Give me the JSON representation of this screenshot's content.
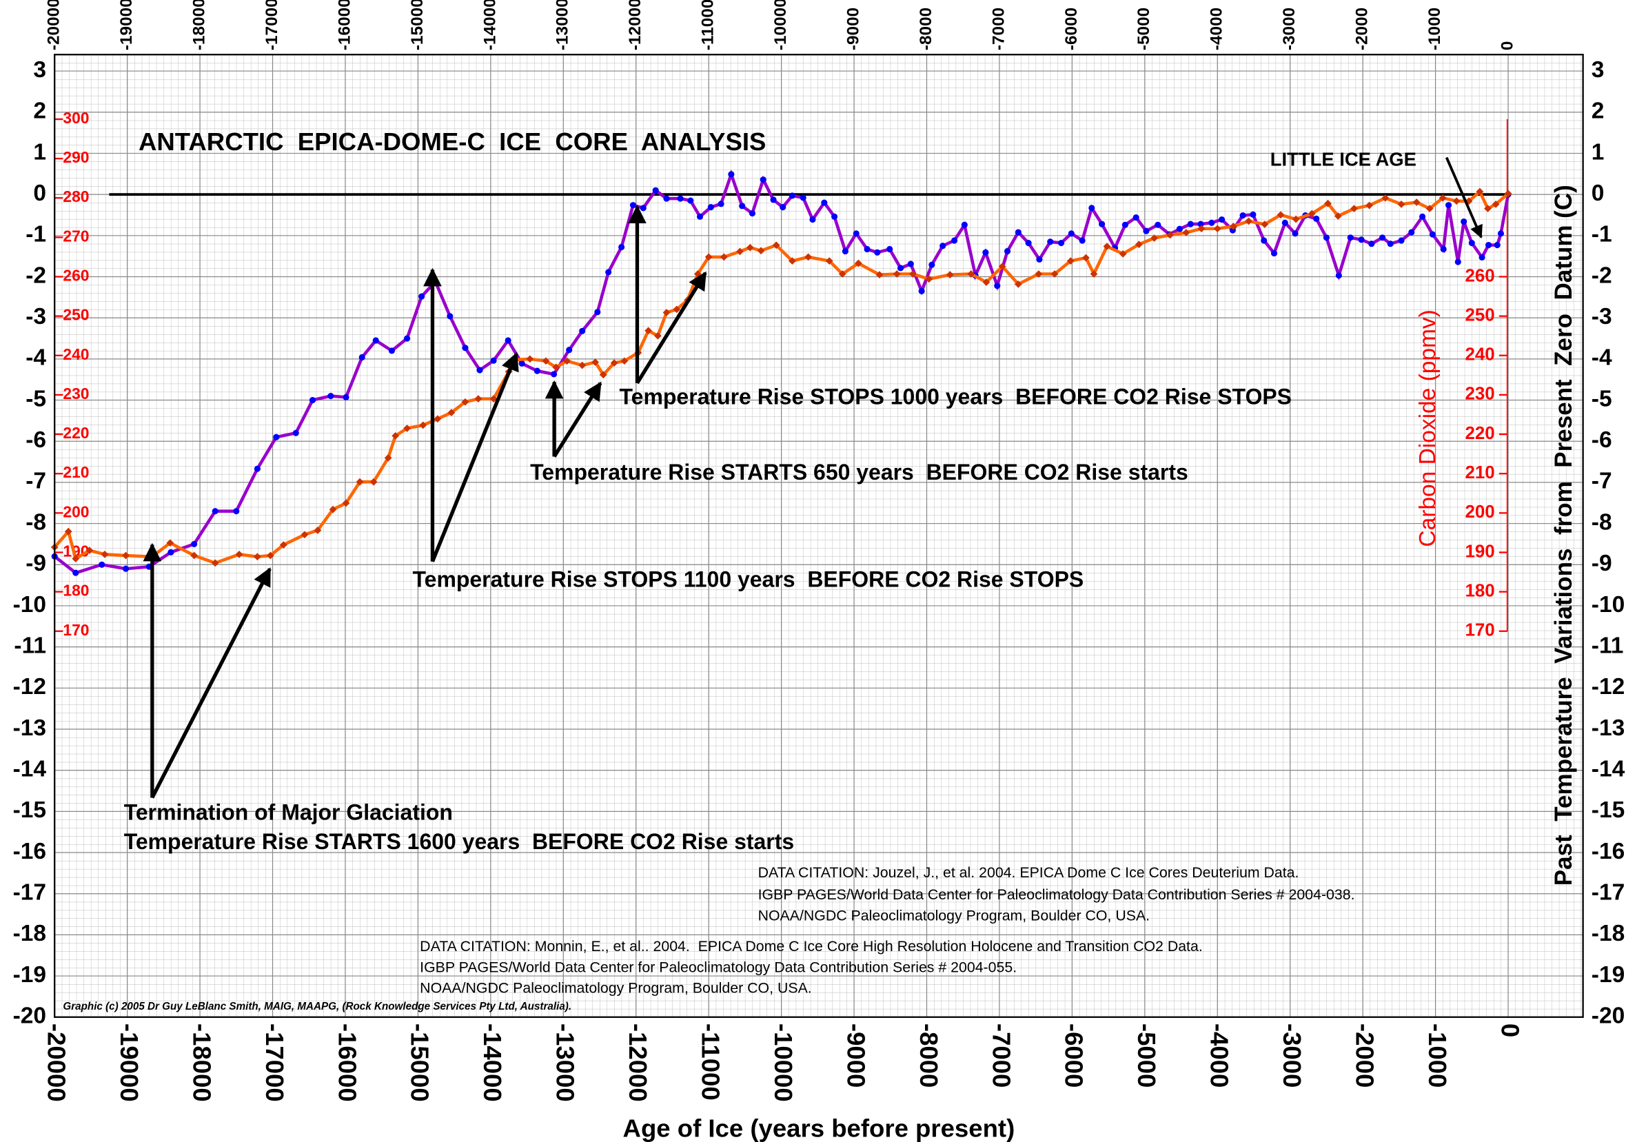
{
  "chart_data": {
    "type": "line",
    "title": "ANTARCTIC  EPICA-DOME-C  ICE  CORE  ANALYSIS",
    "x_label": "Age of Ice (years before present)",
    "y_label": "Past  Temperature  Variations  from  Present  Zero  Datum (C)",
    "y2_label": "Carbon Dioxide (ppmv)",
    "annotations": [
      "LITTLE ICE AGE",
      "Temperature Rise STOPS 1000 years  BEFORE CO2 Rise STOPS",
      "Temperature Rise STARTS 650 years  BEFORE CO2 Rise starts",
      "Temperature Rise STOPS 1100 years  BEFORE CO2 Rise STOPS",
      "Termination of Major Glaciation",
      "Temperature Rise STARTS 1600 years  BEFORE CO2 Rise starts"
    ],
    "citations": [
      "DATA CITATION: Jouzel, J., et al. 2004. EPICA Dome C Ice Cores Deuterium Data.",
      "IGBP PAGES/World Data Center for Paleoclimatology Data Contribution Series # 2004-038.",
      "NOAA/NGDC Paleoclimatology Program, Boulder CO, USA.",
      "DATA CITATION: Monnin, E., et al.. 2004.  EPICA Dome C Ice Core High Resolution Holocene and Transition CO2 Data.",
      "IGBP PAGES/World Data Center for Paleoclimatology Data Contribution Series # 2004-055.",
      "NOAA/NGDC Paleoclimatology Program, Boulder CO, USA."
    ],
    "credit": "Graphic (c) 2005 Dr Guy LeBlanc Smith, MAIG, MAAPG, (Rock Knowledge Services Pty Ltd, Australia).",
    "xlim": [
      -20000,
      1030
    ],
    "xticks": [
      -20000,
      -19000,
      -18000,
      -17000,
      -16000,
      -15000,
      -14000,
      -13000,
      -12000,
      -11000,
      -10000,
      -9000,
      -8000,
      -7000,
      -6000,
      -5000,
      -4000,
      -3000,
      -2000,
      -1000,
      0
    ],
    "ylim": [
      -20,
      3.4
    ],
    "yticks": [
      -20,
      -19,
      -18,
      -17,
      -16,
      -15,
      -14,
      -13,
      -12,
      -11,
      -10,
      -9,
      -8,
      -7,
      -6,
      -5,
      -4,
      -3,
      -2,
      -1,
      0,
      1,
      2,
      3
    ],
    "y2lim": [
      72,
      316.4
    ],
    "y2ticks": [
      170,
      180,
      190,
      200,
      210,
      220,
      230,
      240,
      250,
      260,
      270,
      280,
      290,
      300
    ],
    "y2ticks_inner": [
      170,
      180,
      190,
      200,
      210,
      220,
      230,
      240,
      250,
      260
    ],
    "reference_line": 0,
    "grid": true,
    "series": [
      {
        "color": "#9900cc",
        "marker_color": "#0000ff",
        "axis": "y",
        "x": [
          -20000,
          -19710,
          -19350,
          -19020,
          -18700,
          -18400,
          -18080,
          -17790,
          -17500,
          -17210,
          -16950,
          -16680,
          -16450,
          -16200,
          -15990,
          -15770,
          -15580,
          -15360,
          -15150,
          -14950,
          -14760,
          -14560,
          -14350,
          -14150,
          -13960,
          -13760,
          -13570,
          -13360,
          -13130,
          -12920,
          -12740,
          -12530,
          -12380,
          -12200,
          -12040,
          -11900,
          -11730,
          -11580,
          -11390,
          -11250,
          -11120,
          -10970,
          -10830,
          -10690,
          -10540,
          -10400,
          -10250,
          -10110,
          -9980,
          -9850,
          -9700,
          -9570,
          -9410,
          -9270,
          -9120,
          -8970,
          -8820,
          -8680,
          -8510,
          -8360,
          -8220,
          -8070,
          -7930,
          -7780,
          -7620,
          -7480,
          -7330,
          -7190,
          -7030,
          -6890,
          -6740,
          -6600,
          -6450,
          -6300,
          -6150,
          -6010,
          -5860,
          -5730,
          -5590,
          -5410,
          -5270,
          -5120,
          -4980,
          -4820,
          -4660,
          -4520,
          -4370,
          -4230,
          -4080,
          -3940,
          -3790,
          -3650,
          -3510,
          -3360,
          -3220,
          -3070,
          -2930,
          -2790,
          -2640,
          -2500,
          -2330,
          -2170,
          -2020,
          -1880,
          -1730,
          -1620,
          -1470,
          -1330,
          -1180,
          -1040,
          -890,
          -820,
          -690,
          -610,
          -500,
          -360,
          -270,
          -150,
          -100,
          0
        ],
        "values": [
          -8.8,
          -9.2,
          -9.0,
          -9.1,
          -9.05,
          -8.7,
          -8.5,
          -7.7,
          -7.7,
          -6.67,
          -5.9,
          -5.8,
          -5.0,
          -4.9,
          -4.93,
          -3.96,
          -3.55,
          -3.8,
          -3.5,
          -2.48,
          -2.12,
          -2.96,
          -3.73,
          -4.27,
          -4.04,
          -3.55,
          -4.11,
          -4.29,
          -4.37,
          -3.78,
          -3.32,
          -2.86,
          -1.89,
          -1.28,
          -0.26,
          -0.33,
          0.1,
          -0.1,
          -0.1,
          -0.15,
          -0.54,
          -0.31,
          -0.23,
          0.49,
          -0.28,
          -0.46,
          0.36,
          -0.13,
          -0.31,
          -0.03,
          -0.08,
          -0.61,
          -0.2,
          -0.54,
          -1.38,
          -0.95,
          -1.33,
          -1.41,
          -1.33,
          -1.79,
          -1.69,
          -2.35,
          -1.71,
          -1.25,
          -1.12,
          -0.74,
          -1.97,
          -1.41,
          -2.22,
          -1.38,
          -0.92,
          -1.18,
          -1.58,
          -1.15,
          -1.18,
          -0.95,
          -1.12,
          -0.33,
          -0.72,
          -1.3,
          -0.74,
          -0.56,
          -0.89,
          -0.74,
          -0.97,
          -0.84,
          -0.72,
          -0.72,
          -0.69,
          -0.61,
          -0.87,
          -0.51,
          -0.49,
          -1.12,
          -1.43,
          -0.69,
          -0.95,
          -0.51,
          -0.59,
          -1.05,
          -1.97,
          -1.05,
          -1.1,
          -1.2,
          -1.05,
          -1.2,
          -1.12,
          -0.92,
          -0.54,
          -0.97,
          -1.33,
          -0.26,
          -1.64,
          -0.66,
          -1.18,
          -1.53,
          -1.23,
          -1.23,
          -0.95,
          0
        ]
      },
      {
        "color": "#ff6600",
        "marker_color": "#cc3300",
        "axis": "y2",
        "x": [
          -20000,
          -19810,
          -19710,
          -19520,
          -19310,
          -19020,
          -18660,
          -18410,
          -18080,
          -17790,
          -17460,
          -17210,
          -17030,
          -16850,
          -16560,
          -16380,
          -16170,
          -15990,
          -15800,
          -15610,
          -15410,
          -15310,
          -15150,
          -14930,
          -14730,
          -14540,
          -14350,
          -14170,
          -13960,
          -13750,
          -13680,
          -13460,
          -13240,
          -13100,
          -12950,
          -12740,
          -12560,
          -12450,
          -12300,
          -12160,
          -11970,
          -11830,
          -11700,
          -11580,
          -11440,
          -11290,
          -11150,
          -11000,
          -10790,
          -10570,
          -10430,
          -10280,
          -10070,
          -9850,
          -9630,
          -9340,
          -9160,
          -8940,
          -8650,
          -8410,
          -8190,
          -7970,
          -7680,
          -7390,
          -7180,
          -6960,
          -6740,
          -6460,
          -6240,
          -6020,
          -5810,
          -5700,
          -5520,
          -5300,
          -5080,
          -4870,
          -4650,
          -4430,
          -4220,
          -4000,
          -3780,
          -3570,
          -3350,
          -3130,
          -2920,
          -2700,
          -2480,
          -2340,
          -2120,
          -1910,
          -1690,
          -1470,
          -1260,
          -1080,
          -900,
          -710,
          -540,
          -390,
          -280,
          -170,
          0
        ],
        "values": [
          191.3,
          195.3,
          188.4,
          190.5,
          189.5,
          189.2,
          188.9,
          192.4,
          189.2,
          187.3,
          189.5,
          188.9,
          189.2,
          191.9,
          194.5,
          195.6,
          200.9,
          202.5,
          207.9,
          207.9,
          214.0,
          219.6,
          221.5,
          222.3,
          223.9,
          225.5,
          228.2,
          229.0,
          229.0,
          235.9,
          238.9,
          239.1,
          238.6,
          237.0,
          238.6,
          237.5,
          238.3,
          235.1,
          238.1,
          238.6,
          240.7,
          246.3,
          245.0,
          250.9,
          251.7,
          254.1,
          260.7,
          265.0,
          265.0,
          266.4,
          267.4,
          266.6,
          268.0,
          264.0,
          265.0,
          264.0,
          260.7,
          263.4,
          260.5,
          260.7,
          260.7,
          259.4,
          260.5,
          260.7,
          258.6,
          262.6,
          258.1,
          260.7,
          260.7,
          264.0,
          264.8,
          260.7,
          267.7,
          265.8,
          268.2,
          269.8,
          270.6,
          271.2,
          272.2,
          272.2,
          272.8,
          274.1,
          273.3,
          275.7,
          274.6,
          276.0,
          278.6,
          275.4,
          277.3,
          278.1,
          280.0,
          278.4,
          278.9,
          277.3,
          280.0,
          279.2,
          279.2,
          281.6,
          277.3,
          278.4,
          281.1
        ]
      }
    ]
  }
}
